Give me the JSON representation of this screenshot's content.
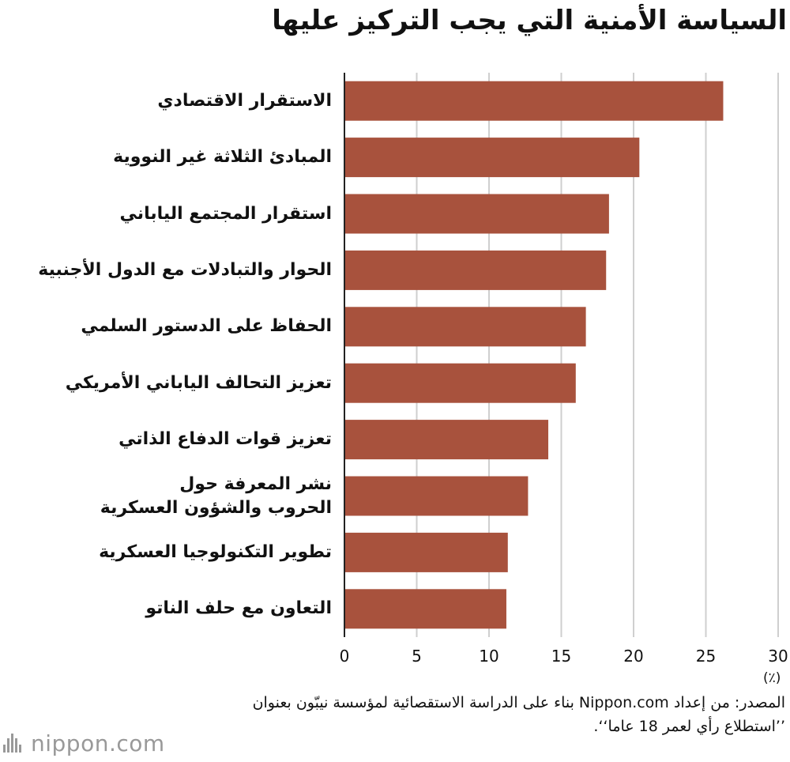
{
  "chart_data": {
    "type": "bar",
    "orientation": "horizontal",
    "title": "السياسة الأمنية التي يجب التركيز عليها",
    "unit": "(٪)",
    "categories": [
      "الاستقرار الاقتصادي",
      "المبادئ الثلاثة غير النووية",
      "استقرار المجتمع الياباني",
      "الحوار والتبادلات مع الدول الأجنبية",
      "الحفاظ على الدستور السلمي",
      "تعزيز التحالف الياباني الأمريكي",
      "تعزيز قوات الدفاع الذاتي",
      "نشر المعرفة حول\nالحروب والشؤون العسكرية",
      "تطوير التكنولوجيا العسكرية",
      "التعاون مع حلف الناتو"
    ],
    "values": [
      26.2,
      20.4,
      18.3,
      18.1,
      16.7,
      16.0,
      14.1,
      12.7,
      11.3,
      11.2
    ],
    "xlim": [
      0,
      30
    ],
    "ticks": [
      0,
      5,
      10,
      15,
      20,
      25,
      30
    ],
    "tick_labels": [
      "0",
      "5",
      "10",
      "15",
      "20",
      "25",
      "30"
    ],
    "grid": true,
    "bar_color": "#a8523d",
    "grid_color": "#cfcfcf",
    "axis_color": "#222222"
  },
  "source": "المصدر: من إعداد Nippon.com بناء على الدراسة الاستقصائية لمؤسسة نيبّون بعنوان ’’استطلاع رأي لعمر 18 عاما‘‘.",
  "logo_text": "nippon.com"
}
